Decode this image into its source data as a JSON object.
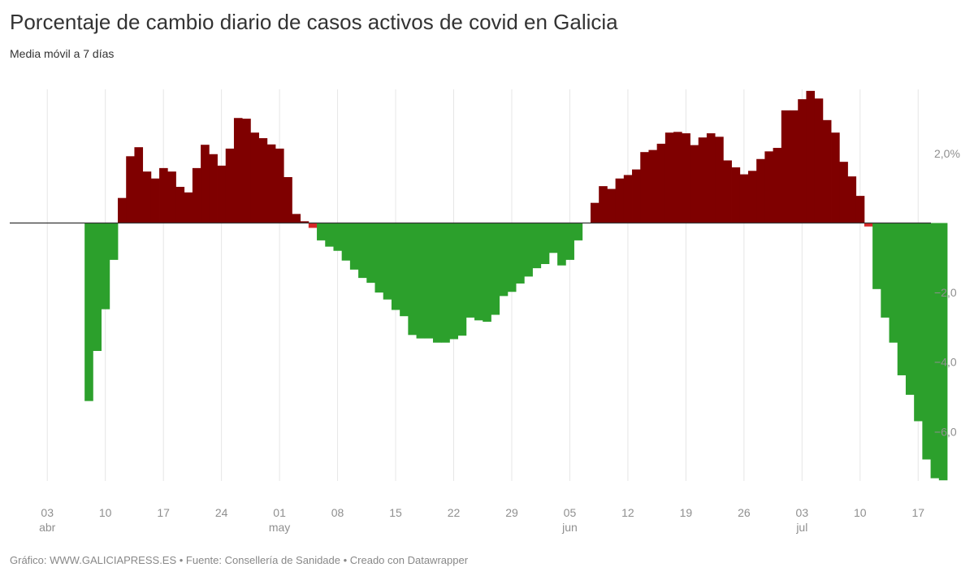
{
  "title": "Porcentaje de cambio diario de casos activos de covid en Galicia",
  "subtitle": "Media móvil a 7 días",
  "footer": "Gráfico: WWW.GALICIAPRESS.ES • Fuente: Consellería de Sanidade • Creado con Datawrapper",
  "colors": {
    "positive": "#7f0000",
    "negative": "#2ca02c",
    "slight_negative": "#d62728"
  },
  "chart_data": {
    "type": "bar",
    "title": "Porcentaje de cambio diario de casos activos de covid en Galicia",
    "subtitle": "Media móvil a 7 días",
    "xlabel": "",
    "ylabel": "",
    "x_start": "2021-04-01",
    "ylim": [
      -7.5,
      3.8
    ],
    "grid": true,
    "y_ticks": [
      {
        "value": 2,
        "label": "2,0%"
      },
      {
        "value": -2,
        "label": "−2,0"
      },
      {
        "value": -4,
        "label": "−4,0"
      },
      {
        "value": -6,
        "label": "−6,0"
      }
    ],
    "x_ticks": [
      {
        "day": 2,
        "label": "03",
        "month": "abr"
      },
      {
        "day": 9,
        "label": "10",
        "month": ""
      },
      {
        "day": 16,
        "label": "17",
        "month": ""
      },
      {
        "day": 23,
        "label": "24",
        "month": ""
      },
      {
        "day": 30,
        "label": "01",
        "month": "may"
      },
      {
        "day": 37,
        "label": "08",
        "month": ""
      },
      {
        "day": 44,
        "label": "15",
        "month": ""
      },
      {
        "day": 51,
        "label": "22",
        "month": ""
      },
      {
        "day": 58,
        "label": "29",
        "month": ""
      },
      {
        "day": 65,
        "label": "05",
        "month": "jun"
      },
      {
        "day": 72,
        "label": "12",
        "month": ""
      },
      {
        "day": 79,
        "label": "19",
        "month": ""
      },
      {
        "day": 86,
        "label": "26",
        "month": ""
      },
      {
        "day": 93,
        "label": "03",
        "month": "jul"
      },
      {
        "day": 100,
        "label": "10",
        "month": ""
      },
      {
        "day": 107,
        "label": "17",
        "month": ""
      }
    ],
    "first_bar_day": 7,
    "values": [
      -5.12,
      -3.68,
      -2.48,
      -1.06,
      0.72,
      1.92,
      2.18,
      1.48,
      1.28,
      1.58,
      1.48,
      1.04,
      0.88,
      1.58,
      2.25,
      1.98,
      1.65,
      2.14,
      3.02,
      3.0,
      2.6,
      2.44,
      2.26,
      2.14,
      1.32,
      0.26,
      0.05,
      -0.14,
      -0.5,
      -0.68,
      -0.8,
      -1.08,
      -1.34,
      -1.58,
      -1.72,
      -2.0,
      -2.2,
      -2.5,
      -2.68,
      -3.22,
      -3.32,
      -3.32,
      -3.44,
      -3.44,
      -3.34,
      -3.24,
      -2.72,
      -2.8,
      -2.84,
      -2.64,
      -2.1,
      -1.98,
      -1.74,
      -1.54,
      -1.3,
      -1.18,
      -0.86,
      -1.22,
      -1.06,
      -0.5,
      0.0,
      0.58,
      1.06,
      0.98,
      1.28,
      1.38,
      1.54,
      2.04,
      2.1,
      2.28,
      2.6,
      2.62,
      2.58,
      2.24,
      2.46,
      2.58,
      2.48,
      1.8,
      1.6,
      1.4,
      1.5,
      1.84,
      2.06,
      2.16,
      3.24,
      3.24,
      3.56,
      3.8,
      3.58,
      2.96,
      2.6,
      1.76,
      1.34,
      0.78,
      -0.1,
      -1.9,
      -2.72,
      -3.44,
      -4.38,
      -4.94,
      -5.7,
      -6.8,
      -7.34,
      -7.4
    ]
  }
}
